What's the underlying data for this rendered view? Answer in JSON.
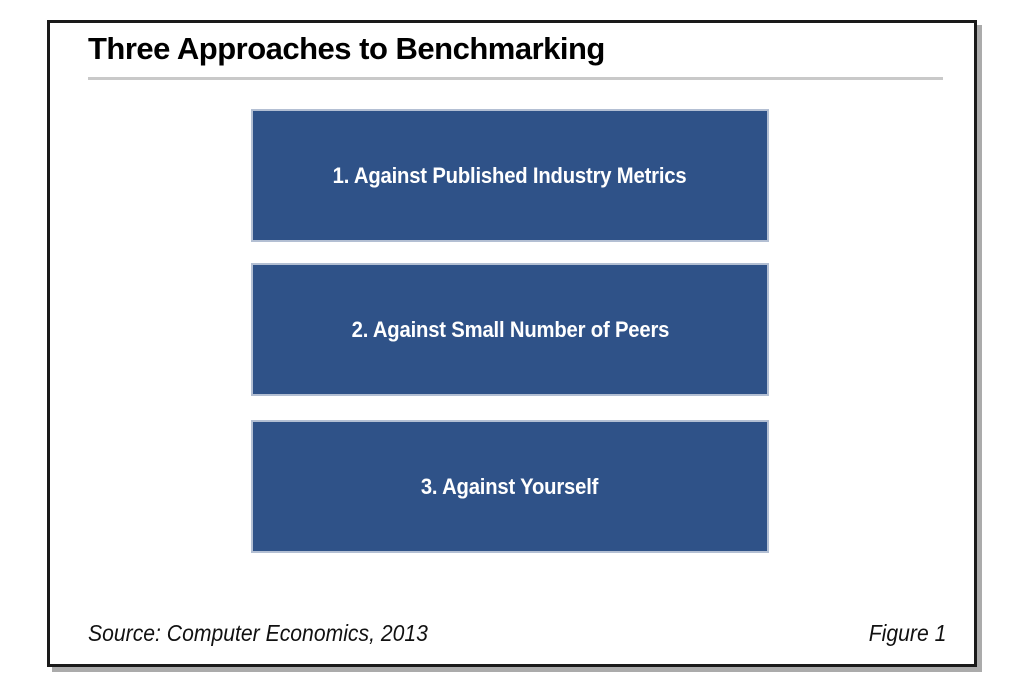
{
  "figure": {
    "title": "Three Approaches to Benchmarking",
    "boxes": [
      {
        "label": "1. Against Published Industry Metrics"
      },
      {
        "label": "2. Against Small Number of Peers"
      },
      {
        "label": "3. Against Yourself"
      }
    ],
    "source": "Source: Computer Economics, 2013",
    "figure_number": "Figure 1",
    "colors": {
      "box_fill": "#2F5288",
      "box_border": "#B3BFD3",
      "box_text": "#FFFFFF",
      "frame_border": "#1A1A1A",
      "frame_shadow": "#ABABAB",
      "title_text": "#000000",
      "rule": "#C9C9C9"
    }
  }
}
